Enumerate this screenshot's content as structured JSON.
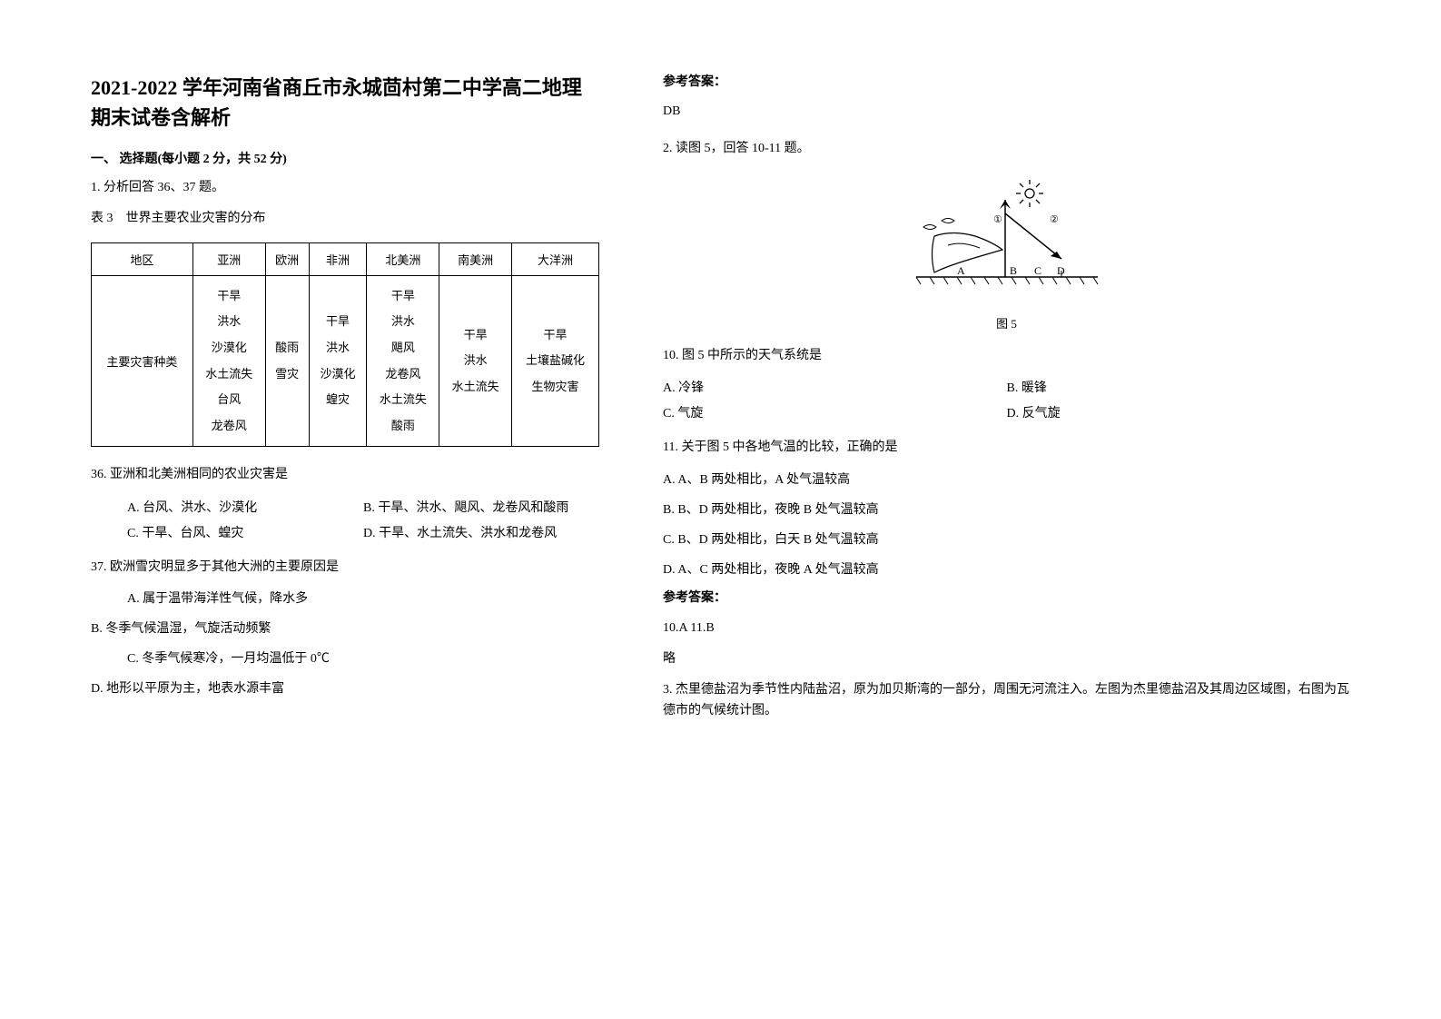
{
  "header": {
    "title": "2021-2022 学年河南省商丘市永城茴村第二中学高二地理期末试卷含解析"
  },
  "section1": {
    "heading": "一、 选择题(每小题 2 分，共 52 分)",
    "q1_intro": "1. 分析回答 36、37 题。",
    "table_title": "表 3　世界主要农业灾害的分布",
    "table": {
      "columns": [
        "地区",
        "亚洲",
        "欧洲",
        "非洲",
        "北美洲",
        "南美洲",
        "大洋洲"
      ],
      "row_label": "主要灾害种类",
      "rows": [
        [
          "干旱\n洪水\n沙漠化\n水土流失\n台风\n龙卷风",
          "酸雨\n雪灾",
          "干旱\n洪水\n沙漠化\n蝗灾",
          "干旱\n洪水\n飓风\n龙卷风\n水土流失\n酸雨",
          "干旱\n洪水\n水土流失",
          "干旱\n土壤盐碱化\n生物灾害"
        ]
      ]
    },
    "q36": {
      "stem": "36.  亚洲和北美洲相同的农业灾害是",
      "A": "A.  台风、洪水、沙漠化",
      "B": "B.  干旱、洪水、飓风、龙卷风和酸雨",
      "C": "C.  干旱、台风、蝗灾",
      "D": "D.  干旱、水土流失、洪水和龙卷风"
    },
    "q37": {
      "stem": "37.  欧洲雪灾明显多于其他大洲的主要原因是",
      "A": "A.  属于温带海洋性气候，降水多",
      "B": "B.  冬季气候温湿，气旋活动频繁",
      "C": "C.  冬季气候寒冷，一月均温低于 0℃",
      "D": "D.  地形以平原为主，地表水源丰富"
    }
  },
  "answers": {
    "label": "参考答案：",
    "ans1": "DB",
    "q2_intro": "2. 读图 5，回答 10-11 题。",
    "figure_caption": "图 5",
    "figure_labels": {
      "c1": "①",
      "c2": "②",
      "A": "A",
      "B": "B",
      "C": "C",
      "D": "D"
    },
    "q10": {
      "stem": "10.  图 5 中所示的天气系统是",
      "A": "A.  冷锋",
      "B": "B.  暖锋",
      "C": "C. 气旋",
      "D": "D. 反气旋"
    },
    "q11": {
      "stem": "11.  关于图 5 中各地气温的比较，正确的是",
      "A": "A.  A、B 两处相比，A 处气温较高",
      "B": "B.  B、D 两处相比，夜晚 B 处气温较高",
      "C": "C.  B、D 两处相比，白天 B 处气温较高",
      "D": "D.  A、C 两处相比，夜晚 A 处气温较高"
    },
    "ans2_label": "参考答案：",
    "ans2": "10.A  11.B",
    "ans2_note": "略",
    "q3_intro": "3. 杰里德盐沼为季节性内陆盐沼，原为加贝斯湾的一部分，周围无河流注入。左图为杰里德盐沼及其周边区域图，右图为瓦德市的气候统计图。"
  },
  "colors": {
    "text": "#000000",
    "bg": "#ffffff",
    "border": "#000000"
  }
}
